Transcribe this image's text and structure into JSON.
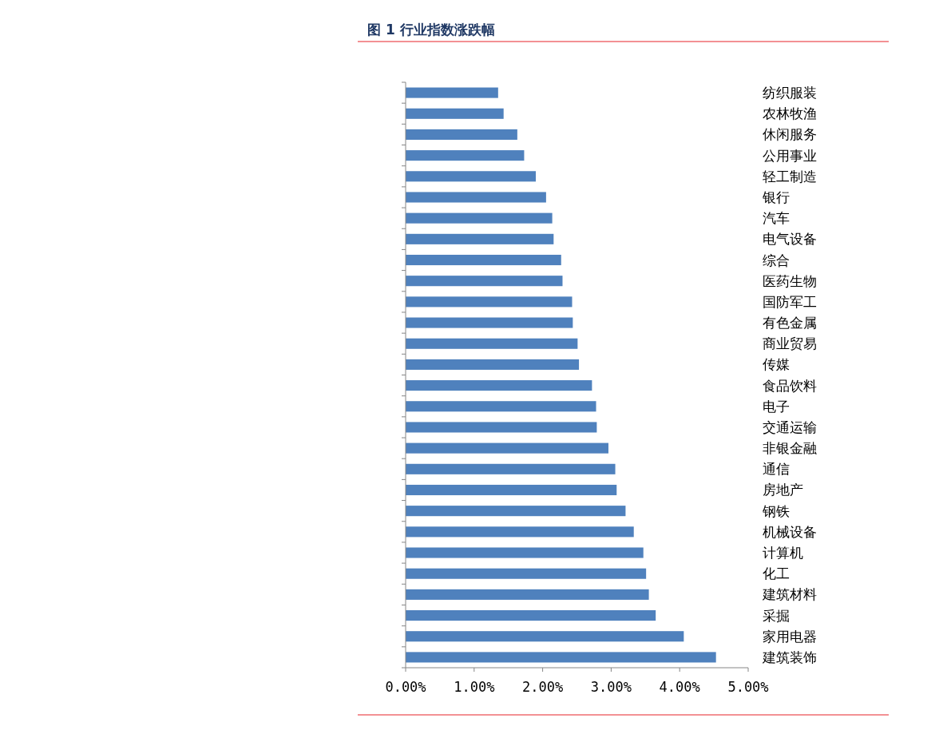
{
  "chart_data": {
    "type": "bar",
    "orientation": "horizontal",
    "title": "图 1 行业指数涨跌幅",
    "categories": [
      "纺织服装",
      "农林牧渔",
      "休闲服务",
      "公用事业",
      "轻工制造",
      "银行",
      "汽车",
      "电气设备",
      "综合",
      "医药生物",
      "国防军工",
      "有色金属",
      "商业贸易",
      "传媒",
      "食品饮料",
      "电子",
      "交通运输",
      "非银金融",
      "通信",
      "房地产",
      "钢铁",
      "机械设备",
      "计算机",
      "化工",
      "建筑材料",
      "采掘",
      "家用电器",
      "建筑装饰"
    ],
    "values": [
      1.35,
      1.43,
      1.63,
      1.73,
      1.9,
      2.05,
      2.14,
      2.16,
      2.27,
      2.29,
      2.43,
      2.44,
      2.51,
      2.53,
      2.72,
      2.78,
      2.79,
      2.96,
      3.06,
      3.08,
      3.21,
      3.33,
      3.47,
      3.51,
      3.55,
      3.65,
      4.06,
      4.53
    ],
    "color": "#4f81bd",
    "xlim": [
      0,
      5
    ],
    "xticks": [
      {
        "value": 0,
        "label": "0.00%"
      },
      {
        "value": 1,
        "label": "1.00%"
      },
      {
        "value": 2,
        "label": "2.00%"
      },
      {
        "value": 3,
        "label": "3.00%"
      },
      {
        "value": 4,
        "label": "4.00%"
      },
      {
        "value": 5,
        "label": "5.00%"
      }
    ],
    "grid": false
  }
}
